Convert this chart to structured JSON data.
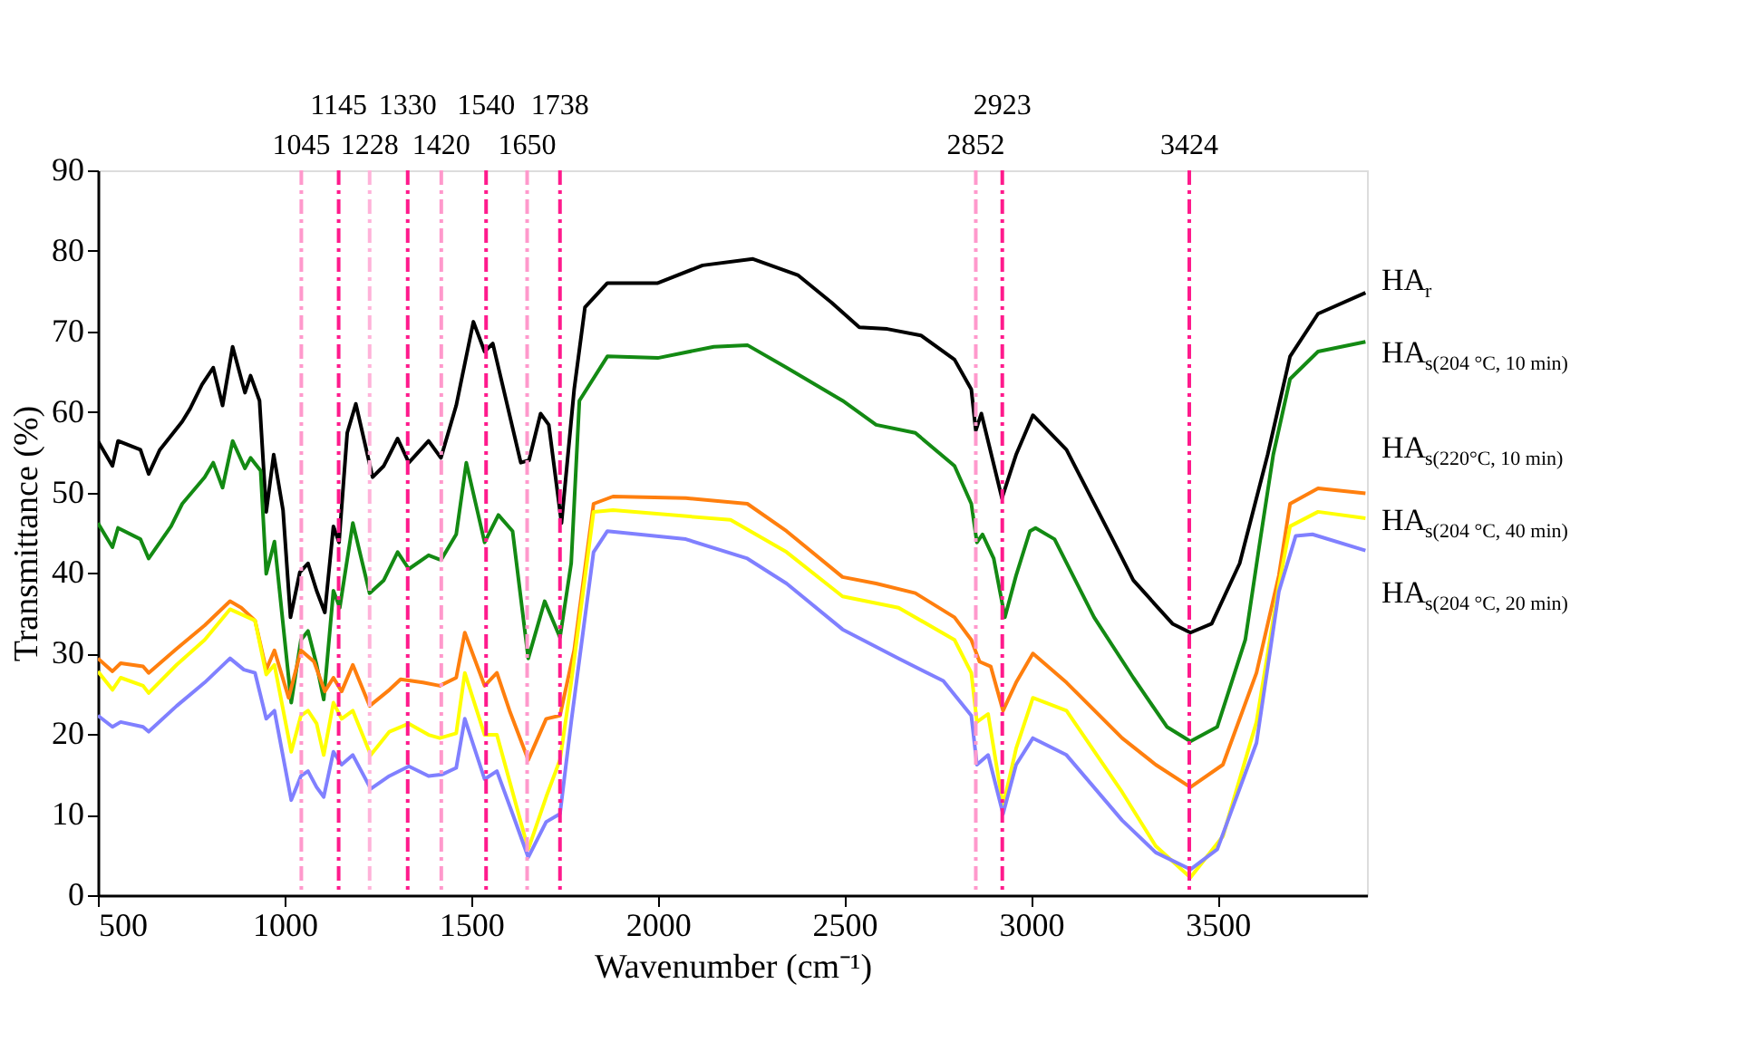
{
  "chart_data": {
    "type": "line",
    "xlabel": "Wavenumber (cm⁻¹)",
    "ylabel": "Transmittance (%)",
    "xlim": [
      500,
      3900
    ],
    "xticks": [
      500,
      1000,
      1500,
      2000,
      2500,
      3000,
      3500
    ],
    "ylim": [
      0,
      90
    ],
    "yticks": [
      0,
      10,
      20,
      30,
      40,
      50,
      60,
      70,
      80,
      90
    ],
    "grid": false,
    "marker": "none",
    "line_style": "solid",
    "series": [
      {
        "name": "HA$_{r}$",
        "color": "#000000",
        "x": [
          500,
          539,
          554,
          614,
          636,
          666,
          726,
          747,
          779,
          809,
          834,
          861,
          894,
          909,
          933,
          951,
          971,
          996,
          1016,
          1041,
          1063,
          1086,
          1108,
          1131,
          1146,
          1168,
          1191,
          1236,
          1266,
          1303,
          1333,
          1386,
          1419,
          1460,
          1506,
          1536,
          1558,
          1633,
          1655,
          1686,
          1708,
          1742,
          1776,
          1805,
          1865,
          2000,
          2120,
          2255,
          2375,
          2465,
          2540,
          2615,
          2705,
          2795,
          2840,
          2852,
          2867,
          2922,
          2960,
          3005,
          3095,
          3214,
          3274,
          3379,
          3427,
          3484,
          3559,
          3634,
          3694,
          3769,
          3896
        ],
        "values": [
          56.4,
          53.3,
          56.4,
          55.3,
          52.3,
          55.3,
          58.8,
          60.4,
          63.4,
          65.5,
          60.8,
          68.1,
          62.4,
          64.5,
          61.4,
          47.6,
          54.7,
          47.8,
          34.5,
          40.1,
          41.2,
          37.8,
          35.1,
          45.8,
          43.8,
          57.4,
          61.0,
          51.9,
          53.3,
          56.7,
          53.7,
          56.4,
          54.3,
          60.8,
          71.2,
          67.5,
          68.5,
          53.7,
          54.0,
          59.8,
          58.4,
          46.2,
          62.8,
          73.0,
          76.0,
          76.0,
          78.2,
          79.0,
          77.0,
          73.6,
          70.5,
          70.3,
          69.5,
          66.5,
          62.8,
          57.7,
          59.8,
          49.3,
          54.7,
          59.6,
          55.3,
          44.6,
          39.1,
          33.7,
          32.6,
          33.7,
          41.2,
          54.7,
          66.9,
          72.2,
          74.8
        ]
      },
      {
        "name": "HA$_{s(204 °C, 10 min)}$",
        "color": "#138a13",
        "x": [
          500,
          539,
          554,
          614,
          636,
          696,
          726,
          786,
          809,
          834,
          861,
          894,
          909,
          936,
          951,
          973,
          1018,
          1044,
          1063,
          1086,
          1105,
          1131,
          1148,
          1183,
          1228,
          1266,
          1303,
          1333,
          1386,
          1419,
          1460,
          1487,
          1536,
          1573,
          1611,
          1653,
          1697,
          1738,
          1768,
          1790,
          1865,
          2000,
          2150,
          2240,
          2345,
          2495,
          2585,
          2690,
          2795,
          2840,
          2855,
          2870,
          2900,
          2930,
          2960,
          2997,
          3012,
          3063,
          3169,
          3274,
          3364,
          3427,
          3499,
          3574,
          3611,
          3649,
          3694,
          3769,
          3896
        ],
        "values": [
          46.2,
          43.2,
          45.6,
          44.2,
          41.8,
          45.8,
          48.6,
          51.9,
          53.7,
          50.6,
          56.4,
          53.0,
          54.3,
          52.7,
          39.9,
          43.9,
          23.9,
          31.7,
          32.8,
          28.6,
          24.3,
          37.8,
          35.7,
          46.2,
          37.5,
          39.1,
          42.6,
          40.5,
          42.2,
          41.6,
          44.8,
          53.7,
          43.8,
          47.2,
          45.2,
          29.4,
          36.5,
          32.0,
          41.2,
          61.4,
          66.9,
          66.7,
          68.1,
          68.3,
          65.5,
          61.4,
          58.4,
          57.4,
          53.3,
          48.6,
          43.8,
          44.8,
          41.8,
          34.5,
          39.7,
          45.2,
          45.6,
          44.2,
          34.5,
          27.0,
          20.9,
          19.1,
          20.9,
          31.7,
          43.2,
          54.7,
          64.1,
          67.5,
          68.7
        ]
      },
      {
        "name": "HA$_{s(220°C, 10 min)}$",
        "color": "#ff7f0e",
        "x": [
          500,
          539,
          561,
          621,
          636,
          711,
          786,
          854,
          884,
          921,
          951,
          973,
          1011,
          1044,
          1079,
          1108,
          1131,
          1153,
          1183,
          1228,
          1281,
          1311,
          1371,
          1416,
          1460,
          1483,
          1536,
          1569,
          1603,
          1653,
          1701,
          1738,
          1776,
          1828,
          1880,
          2075,
          2240,
          2345,
          2495,
          2585,
          2690,
          2795,
          2840,
          2862,
          2892,
          2925,
          2960,
          3005,
          3095,
          3244,
          3334,
          3427,
          3514,
          3604,
          3664,
          3694,
          3769,
          3896
        ],
        "values": [
          29.4,
          27.8,
          28.8,
          28.4,
          27.6,
          30.6,
          33.5,
          36.5,
          35.7,
          34.1,
          28.0,
          30.4,
          24.5,
          30.4,
          29.0,
          25.3,
          27.0,
          25.3,
          28.6,
          23.5,
          25.5,
          26.8,
          26.4,
          26.0,
          27.0,
          32.6,
          26.0,
          27.6,
          22.9,
          16.8,
          21.9,
          22.3,
          30.4,
          48.6,
          49.5,
          49.3,
          48.6,
          45.2,
          39.5,
          38.7,
          37.5,
          34.5,
          31.7,
          29.0,
          28.4,
          22.9,
          26.4,
          30.0,
          26.4,
          19.5,
          16.2,
          13.4,
          16.2,
          27.6,
          39.7,
          48.6,
          50.5,
          49.9
        ]
      },
      {
        "name": "HA$_{s(204 °C, 40 min)}$",
        "color": "#ffff00",
        "x": [
          500,
          539,
          561,
          621,
          636,
          711,
          786,
          854,
          921,
          951,
          973,
          1018,
          1044,
          1063,
          1086,
          1105,
          1131,
          1153,
          1183,
          1231,
          1281,
          1333,
          1386,
          1416,
          1460,
          1483,
          1536,
          1569,
          1611,
          1653,
          1701,
          1738,
          1768,
          1828,
          1880,
          2195,
          2345,
          2495,
          2645,
          2795,
          2840,
          2855,
          2885,
          2925,
          2960,
          3005,
          3095,
          3244,
          3334,
          3427,
          3514,
          3604,
          3664,
          3694,
          3769,
          3896
        ],
        "values": [
          27.8,
          25.5,
          27.0,
          26.0,
          25.1,
          28.6,
          31.7,
          35.5,
          34.1,
          27.4,
          28.6,
          17.8,
          22.3,
          22.9,
          21.3,
          17.4,
          23.9,
          21.9,
          22.9,
          17.4,
          20.3,
          21.3,
          19.9,
          19.5,
          20.1,
          27.6,
          19.9,
          19.9,
          12.8,
          5.7,
          12.2,
          16.8,
          26.4,
          47.6,
          47.8,
          46.6,
          42.6,
          37.1,
          35.7,
          31.7,
          27.6,
          21.5,
          22.5,
          11.1,
          18.2,
          24.5,
          22.9,
          12.8,
          6.1,
          2.2,
          7.3,
          21.5,
          38.5,
          45.8,
          47.6,
          46.8
        ]
      },
      {
        "name": "HA$_{s(204 °C, 20 min)}$",
        "color": "#8080ff",
        "x": [
          500,
          539,
          561,
          621,
          636,
          711,
          786,
          854,
          891,
          921,
          951,
          973,
          1018,
          1044,
          1063,
          1086,
          1105,
          1131,
          1153,
          1183,
          1231,
          1281,
          1333,
          1386,
          1423,
          1460,
          1483,
          1536,
          1569,
          1611,
          1653,
          1701,
          1738,
          1768,
          1828,
          1865,
          2075,
          2240,
          2345,
          2495,
          2645,
          2765,
          2840,
          2855,
          2885,
          2925,
          2960,
          3005,
          3095,
          3244,
          3334,
          3427,
          3499,
          3604,
          3664,
          3709,
          3754,
          3896
        ],
        "values": [
          22.3,
          20.9,
          21.5,
          20.9,
          20.3,
          23.5,
          26.4,
          29.4,
          28.0,
          27.6,
          21.9,
          22.9,
          11.8,
          14.8,
          15.4,
          13.4,
          12.2,
          17.8,
          16.2,
          17.4,
          13.2,
          14.8,
          16.0,
          14.8,
          15.0,
          15.8,
          21.9,
          14.4,
          15.4,
          10.1,
          4.7,
          9.1,
          10.1,
          21.5,
          42.6,
          45.2,
          44.2,
          41.8,
          38.7,
          33.0,
          29.4,
          26.6,
          22.3,
          16.2,
          17.4,
          10.1,
          16.2,
          19.5,
          17.4,
          9.3,
          5.3,
          3.2,
          5.7,
          18.9,
          37.7,
          44.6,
          44.8,
          42.8
        ]
      }
    ],
    "ref_lines": [
      {
        "axis": "x",
        "value": 1045,
        "label": "1045",
        "color": "#ff99cc",
        "line_style": "dashed"
      },
      {
        "axis": "x",
        "value": 1145,
        "label": "1145",
        "color": "#ff1a8c",
        "line_style": "dashed"
      },
      {
        "axis": "x",
        "value": 1228,
        "label": "1228",
        "color": "#ffb3d9",
        "line_style": "dashed"
      },
      {
        "axis": "x",
        "value": 1330,
        "label": "1330",
        "color": "#ff1a8c",
        "line_style": "dashed"
      },
      {
        "axis": "x",
        "value": 1420,
        "label": "1420",
        "color": "#ff99cc",
        "line_style": "dashed"
      },
      {
        "axis": "x",
        "value": 1540,
        "label": "1540",
        "color": "#ff1a8c",
        "line_style": "dashed"
      },
      {
        "axis": "x",
        "value": 1650,
        "label": "1650",
        "color": "#ff99cc",
        "line_style": "dashed"
      },
      {
        "axis": "x",
        "value": 1738,
        "label": "1738",
        "color": "#ff1a8c",
        "line_style": "dashed"
      },
      {
        "axis": "x",
        "value": 2852,
        "label": "2852",
        "color": "#ff99cc",
        "line_style": "dashed"
      },
      {
        "axis": "x",
        "value": 2923,
        "label": "2923",
        "color": "#ff1a8c",
        "line_style": "dashed"
      },
      {
        "axis": "x",
        "value": 3424,
        "label": "3424",
        "color": "#ff1a8c",
        "line_style": "dashed"
      }
    ]
  }
}
